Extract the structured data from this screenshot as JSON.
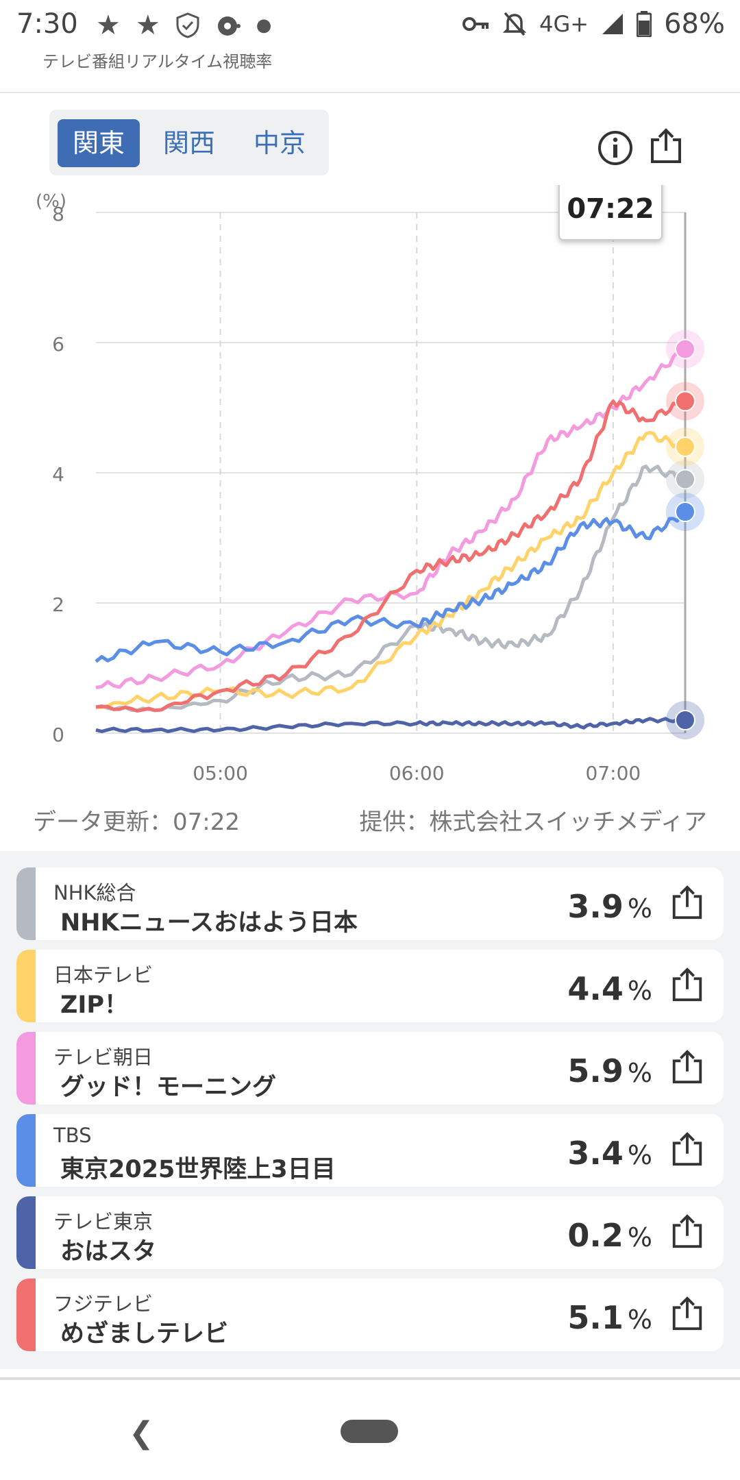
{
  "status_bar": {
    "time": "7:30",
    "network": "4G+",
    "battery": "68%"
  },
  "app_title": "テレビ番組リアルタイム視聴率",
  "tabs": [
    {
      "label": "関東",
      "active": true
    },
    {
      "label": "関西",
      "active": false
    },
    {
      "label": "中京",
      "active": false
    }
  ],
  "icons": {
    "info": "info-icon",
    "share": "share-icon"
  },
  "chart_data": {
    "type": "line",
    "title": "",
    "ylabel": "(%)",
    "xlabel": "",
    "ylim": [
      0,
      8
    ],
    "y_ticks": [
      0,
      2,
      4,
      6,
      8
    ],
    "x_range": [
      "04:22",
      "07:22"
    ],
    "x_ticks": [
      "05:00",
      "06:00",
      "07:00"
    ],
    "grid": true,
    "cursor_time": "07:22",
    "x": [
      "04:22",
      "04:40",
      "05:00",
      "05:20",
      "05:40",
      "06:00",
      "06:10",
      "06:20",
      "06:30",
      "06:40",
      "06:50",
      "07:00",
      "07:10",
      "07:22"
    ],
    "series": [
      {
        "name": "NHK総合",
        "color": "#b5b9c2",
        "values": [
          0.4,
          0.35,
          0.5,
          0.85,
          0.9,
          1.65,
          1.6,
          1.4,
          1.35,
          1.5,
          2.2,
          3.3,
          4.1,
          3.9
        ]
      },
      {
        "name": "日本テレビ",
        "color": "#ffd36a",
        "values": [
          0.4,
          0.55,
          0.65,
          0.6,
          0.7,
          1.5,
          1.8,
          2.2,
          2.6,
          3.0,
          3.3,
          4.0,
          4.6,
          4.4
        ]
      },
      {
        "name": "テレビ朝日",
        "color": "#f49adf",
        "values": [
          0.7,
          0.85,
          1.05,
          1.55,
          2.05,
          2.15,
          2.75,
          3.1,
          3.6,
          4.5,
          4.7,
          5.0,
          5.4,
          5.9
        ]
      },
      {
        "name": "TBS",
        "color": "#5b8ee6",
        "values": [
          1.1,
          1.4,
          1.25,
          1.4,
          1.75,
          1.65,
          1.9,
          2.05,
          2.3,
          2.6,
          3.2,
          3.25,
          3.0,
          3.4
        ]
      },
      {
        "name": "テレビ東京",
        "color": "#4f63a8",
        "values": [
          0.05,
          0.05,
          0.05,
          0.1,
          0.15,
          0.15,
          0.15,
          0.15,
          0.15,
          0.15,
          0.1,
          0.15,
          0.2,
          0.2
        ]
      },
      {
        "name": "フジテレビ",
        "color": "#f07070",
        "values": [
          0.4,
          0.35,
          0.65,
          0.9,
          1.5,
          2.5,
          2.65,
          2.75,
          3.05,
          3.4,
          3.9,
          5.1,
          4.8,
          5.1
        ]
      }
    ]
  },
  "footer": {
    "update": "データ更新：07:22",
    "provider": "提供：株式会社スイッチメディア"
  },
  "programs": [
    {
      "station": "NHK総合",
      "program": "NHKニュースおはよう日本",
      "value": "3.9",
      "unit": "%",
      "color": "#b5b9c2"
    },
    {
      "station": "日本テレビ",
      "program": "ZIP！",
      "value": "4.4",
      "unit": "%",
      "color": "#ffd36a"
    },
    {
      "station": "テレビ朝日",
      "program": "グッド！モーニング",
      "value": "5.9",
      "unit": "%",
      "color": "#f49adf"
    },
    {
      "station": "TBS",
      "program": "東京2025世界陸上3日目",
      "value": "3.4",
      "unit": "%",
      "color": "#5b8ee6"
    },
    {
      "station": "テレビ東京",
      "program": "おはスタ",
      "value": "0.2",
      "unit": "%",
      "color": "#4f63a8"
    },
    {
      "station": "フジテレビ",
      "program": "めざましテレビ",
      "value": "5.1",
      "unit": "%",
      "color": "#f07070"
    }
  ]
}
